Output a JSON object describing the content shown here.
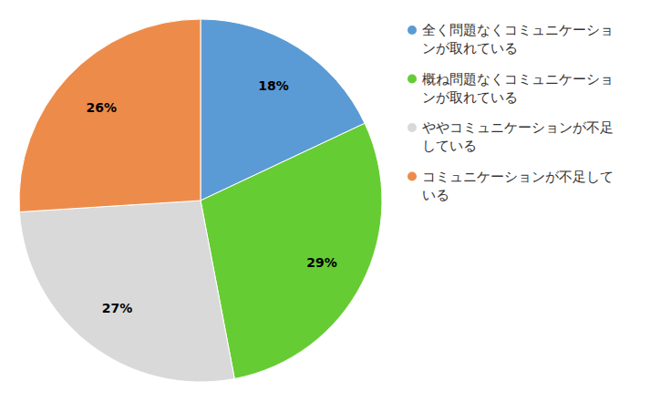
{
  "chart_data": {
    "type": "pie",
    "categories": [
      "全く問題なくコミュニケーションが取れている",
      "概ね問題なくコミュニケーションが取れている",
      "ややコミュニケーションが不足している",
      "コミュニケーションが不足している"
    ],
    "values": [
      18,
      29,
      27,
      26
    ],
    "value_labels": [
      "18%",
      "29%",
      "27%",
      "26%"
    ],
    "colors": [
      "#5b9bd5",
      "#66cc33",
      "#d9d9d9",
      "#ed8c4a"
    ],
    "data_labels": true,
    "legend": "right"
  }
}
